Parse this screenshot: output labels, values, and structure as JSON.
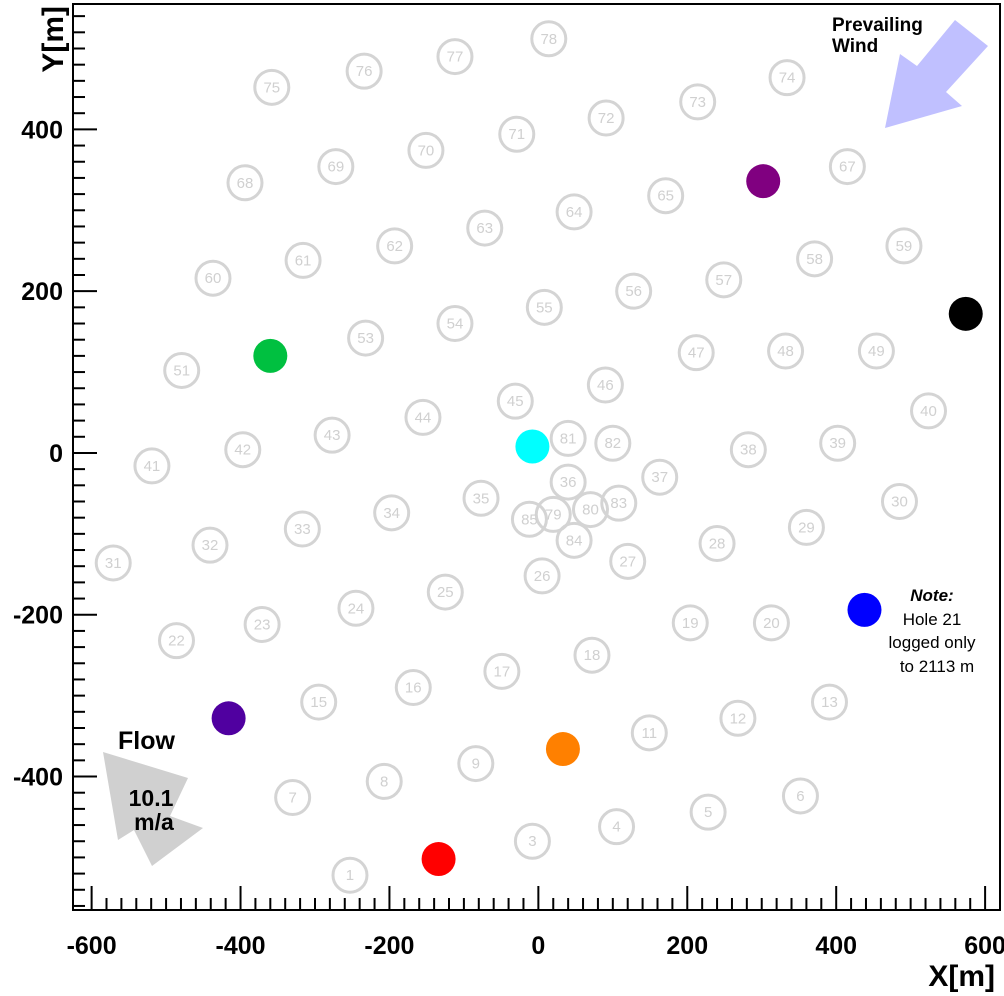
{
  "chart_data": {
    "type": "scatter",
    "title": "",
    "xlabel": "X[m]",
    "ylabel": "Y[m]",
    "xlim": [
      -625,
      620
    ],
    "ylim": [
      -565,
      555
    ],
    "xticks": [
      -600,
      -400,
      -200,
      0,
      200,
      400,
      600
    ],
    "xtick_labels": [
      "-600",
      "-400",
      "-200",
      "0",
      "200",
      "400",
      "600"
    ],
    "yticks": [
      -400,
      -200,
      0,
      200,
      400
    ],
    "ytick_labels": [
      "-400",
      "-200",
      "0",
      "200",
      "400"
    ],
    "grid": false,
    "holes_color": "#d4d4d4",
    "holes": [
      {
        "id": "1",
        "x": -253,
        "y": -522
      },
      {
        "id": "3",
        "x": -8,
        "y": -480
      },
      {
        "id": "4",
        "x": 105,
        "y": -462
      },
      {
        "id": "5",
        "x": 228,
        "y": -444
      },
      {
        "id": "6",
        "x": 352,
        "y": -424
      },
      {
        "id": "7",
        "x": -330,
        "y": -426
      },
      {
        "id": "8",
        "x": -207,
        "y": -406
      },
      {
        "id": "9",
        "x": -84,
        "y": -384
      },
      {
        "id": "11",
        "x": 149,
        "y": -346
      },
      {
        "id": "12",
        "x": 268,
        "y": -328
      },
      {
        "id": "13",
        "x": 391,
        "y": -308
      },
      {
        "id": "15",
        "x": -295,
        "y": -308
      },
      {
        "id": "16",
        "x": -168,
        "y": -290
      },
      {
        "id": "17",
        "x": -49,
        "y": -270
      },
      {
        "id": "18",
        "x": 72,
        "y": -250
      },
      {
        "id": "19",
        "x": 204,
        "y": -210
      },
      {
        "id": "20",
        "x": 313,
        "y": -210
      },
      {
        "id": "22",
        "x": -486,
        "y": -232
      },
      {
        "id": "23",
        "x": -371,
        "y": -212
      },
      {
        "id": "24",
        "x": -245,
        "y": -192
      },
      {
        "id": "25",
        "x": -125,
        "y": -172
      },
      {
        "id": "26",
        "x": 5,
        "y": -152
      },
      {
        "id": "27",
        "x": 120,
        "y": -134
      },
      {
        "id": "28",
        "x": 240,
        "y": -112
      },
      {
        "id": "29",
        "x": 360,
        "y": -92
      },
      {
        "id": "30",
        "x": 485,
        "y": -60
      },
      {
        "id": "31",
        "x": -571,
        "y": -136
      },
      {
        "id": "32",
        "x": -441,
        "y": -114
      },
      {
        "id": "33",
        "x": -317,
        "y": -94
      },
      {
        "id": "34",
        "x": -197,
        "y": -74
      },
      {
        "id": "35",
        "x": -77,
        "y": -56
      },
      {
        "id": "36",
        "x": 40,
        "y": -36
      },
      {
        "id": "37",
        "x": 163,
        "y": -30
      },
      {
        "id": "38",
        "x": 282,
        "y": 4
      },
      {
        "id": "39",
        "x": 402,
        "y": 12
      },
      {
        "id": "40",
        "x": 524,
        "y": 52
      },
      {
        "id": "41",
        "x": -519,
        "y": -16
      },
      {
        "id": "42",
        "x": -397,
        "y": 4
      },
      {
        "id": "43",
        "x": -277,
        "y": 22
      },
      {
        "id": "44",
        "x": -155,
        "y": 44
      },
      {
        "id": "45",
        "x": -31,
        "y": 64
      },
      {
        "id": "46",
        "x": 90,
        "y": 84
      },
      {
        "id": "47",
        "x": 212,
        "y": 124
      },
      {
        "id": "48",
        "x": 332,
        "y": 126
      },
      {
        "id": "49",
        "x": 454,
        "y": 126
      },
      {
        "id": "51",
        "x": -479,
        "y": 102
      },
      {
        "id": "53",
        "x": -232,
        "y": 142
      },
      {
        "id": "54",
        "x": -112,
        "y": 160
      },
      {
        "id": "55",
        "x": 8,
        "y": 180
      },
      {
        "id": "56",
        "x": 128,
        "y": 200
      },
      {
        "id": "57",
        "x": 249,
        "y": 214
      },
      {
        "id": "58",
        "x": 371,
        "y": 240
      },
      {
        "id": "59",
        "x": 491,
        "y": 256
      },
      {
        "id": "60",
        "x": -437,
        "y": 216
      },
      {
        "id": "61",
        "x": -316,
        "y": 238
      },
      {
        "id": "62",
        "x": -193,
        "y": 256
      },
      {
        "id": "63",
        "x": -72,
        "y": 278
      },
      {
        "id": "64",
        "x": 48,
        "y": 298
      },
      {
        "id": "65",
        "x": 171,
        "y": 318
      },
      {
        "id": "67",
        "x": 415,
        "y": 354
      },
      {
        "id": "68",
        "x": -394,
        "y": 334
      },
      {
        "id": "69",
        "x": -272,
        "y": 354
      },
      {
        "id": "70",
        "x": -151,
        "y": 374
      },
      {
        "id": "71",
        "x": -29,
        "y": 394
      },
      {
        "id": "72",
        "x": 91,
        "y": 414
      },
      {
        "id": "73",
        "x": 214,
        "y": 434
      },
      {
        "id": "74",
        "x": 334,
        "y": 464
      },
      {
        "id": "75",
        "x": -358,
        "y": 452
      },
      {
        "id": "76",
        "x": -234,
        "y": 472
      },
      {
        "id": "77",
        "x": -112,
        "y": 490
      },
      {
        "id": "78",
        "x": 14,
        "y": 512
      },
      {
        "id": "79",
        "x": 20,
        "y": -76
      },
      {
        "id": "80",
        "x": 70,
        "y": -70
      },
      {
        "id": "81",
        "x": 40,
        "y": 18
      },
      {
        "id": "82",
        "x": 100,
        "y": 12
      },
      {
        "id": "83",
        "x": 108,
        "y": -62
      },
      {
        "id": "84",
        "x": 48,
        "y": -108
      },
      {
        "id": "85",
        "x": -12,
        "y": -82
      }
    ],
    "highlighted": [
      {
        "x": -8,
        "y": 8,
        "color": "#00ffff"
      },
      {
        "x": -360,
        "y": 120,
        "color": "#00c040"
      },
      {
        "x": 302,
        "y": 336,
        "color": "#800080"
      },
      {
        "x": 574,
        "y": 172,
        "color": "#000000"
      },
      {
        "x": 438,
        "y": -194,
        "color": "#0000ff"
      },
      {
        "x": -416,
        "y": -328,
        "color": "#5000a0"
      },
      {
        "x": 33,
        "y": -366,
        "color": "#ff8000"
      },
      {
        "x": -134,
        "y": -502,
        "color": "#ff0000"
      }
    ],
    "annotations": {
      "wind_label_line1": "Prevailing",
      "wind_label_line2": "Wind",
      "wind_arrow_color": "#c0c0ff",
      "flow_label": "Flow",
      "flow_value_line1": "10.1",
      "flow_value_line2": "m/a",
      "flow_arrow_color": "#d0d0d0",
      "note_title": "Note:",
      "note_line1": "Hole 21",
      "note_line2": "logged only",
      "note_line3": "to 2113 m"
    }
  }
}
